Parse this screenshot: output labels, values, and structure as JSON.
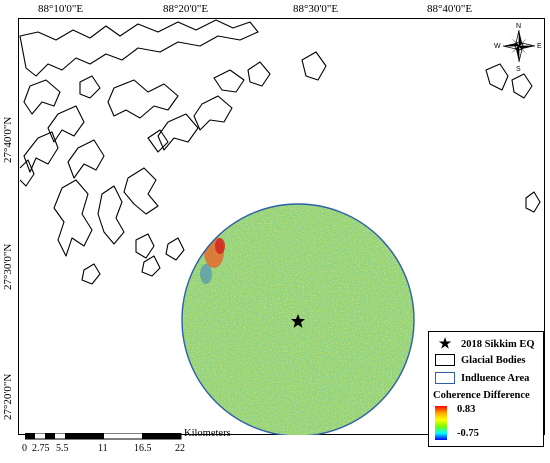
{
  "map": {
    "top_lon_labels": [
      "88°10'0\"E",
      "88°20'0\"E",
      "88°30'0\"E",
      "88°40'0\"E"
    ],
    "left_lat_labels": [
      "27°40'0\"N",
      "27°30'0\"N",
      "27°20'0\"N"
    ],
    "compass": {
      "n": "N",
      "s": "S",
      "e": "E",
      "w": "W"
    },
    "epicenter_marker": "star",
    "colors": {
      "circle_outline": "#2e5fa8",
      "fill_base": "#8fd16a",
      "glacier_outline": "#000000"
    }
  },
  "legend": {
    "epicenter_label": "2018 Sikkim EQ",
    "glacial_label": "Glacial Bodies",
    "influence_label": "Indluence Area",
    "coherence_title": "Coherence Difference",
    "max_value": "0.83",
    "min_value": "-0.75"
  },
  "scale": {
    "unit": "Kilometers",
    "ticks": [
      "0",
      "2.75",
      "5.5",
      "11",
      "16.5",
      "22"
    ]
  }
}
